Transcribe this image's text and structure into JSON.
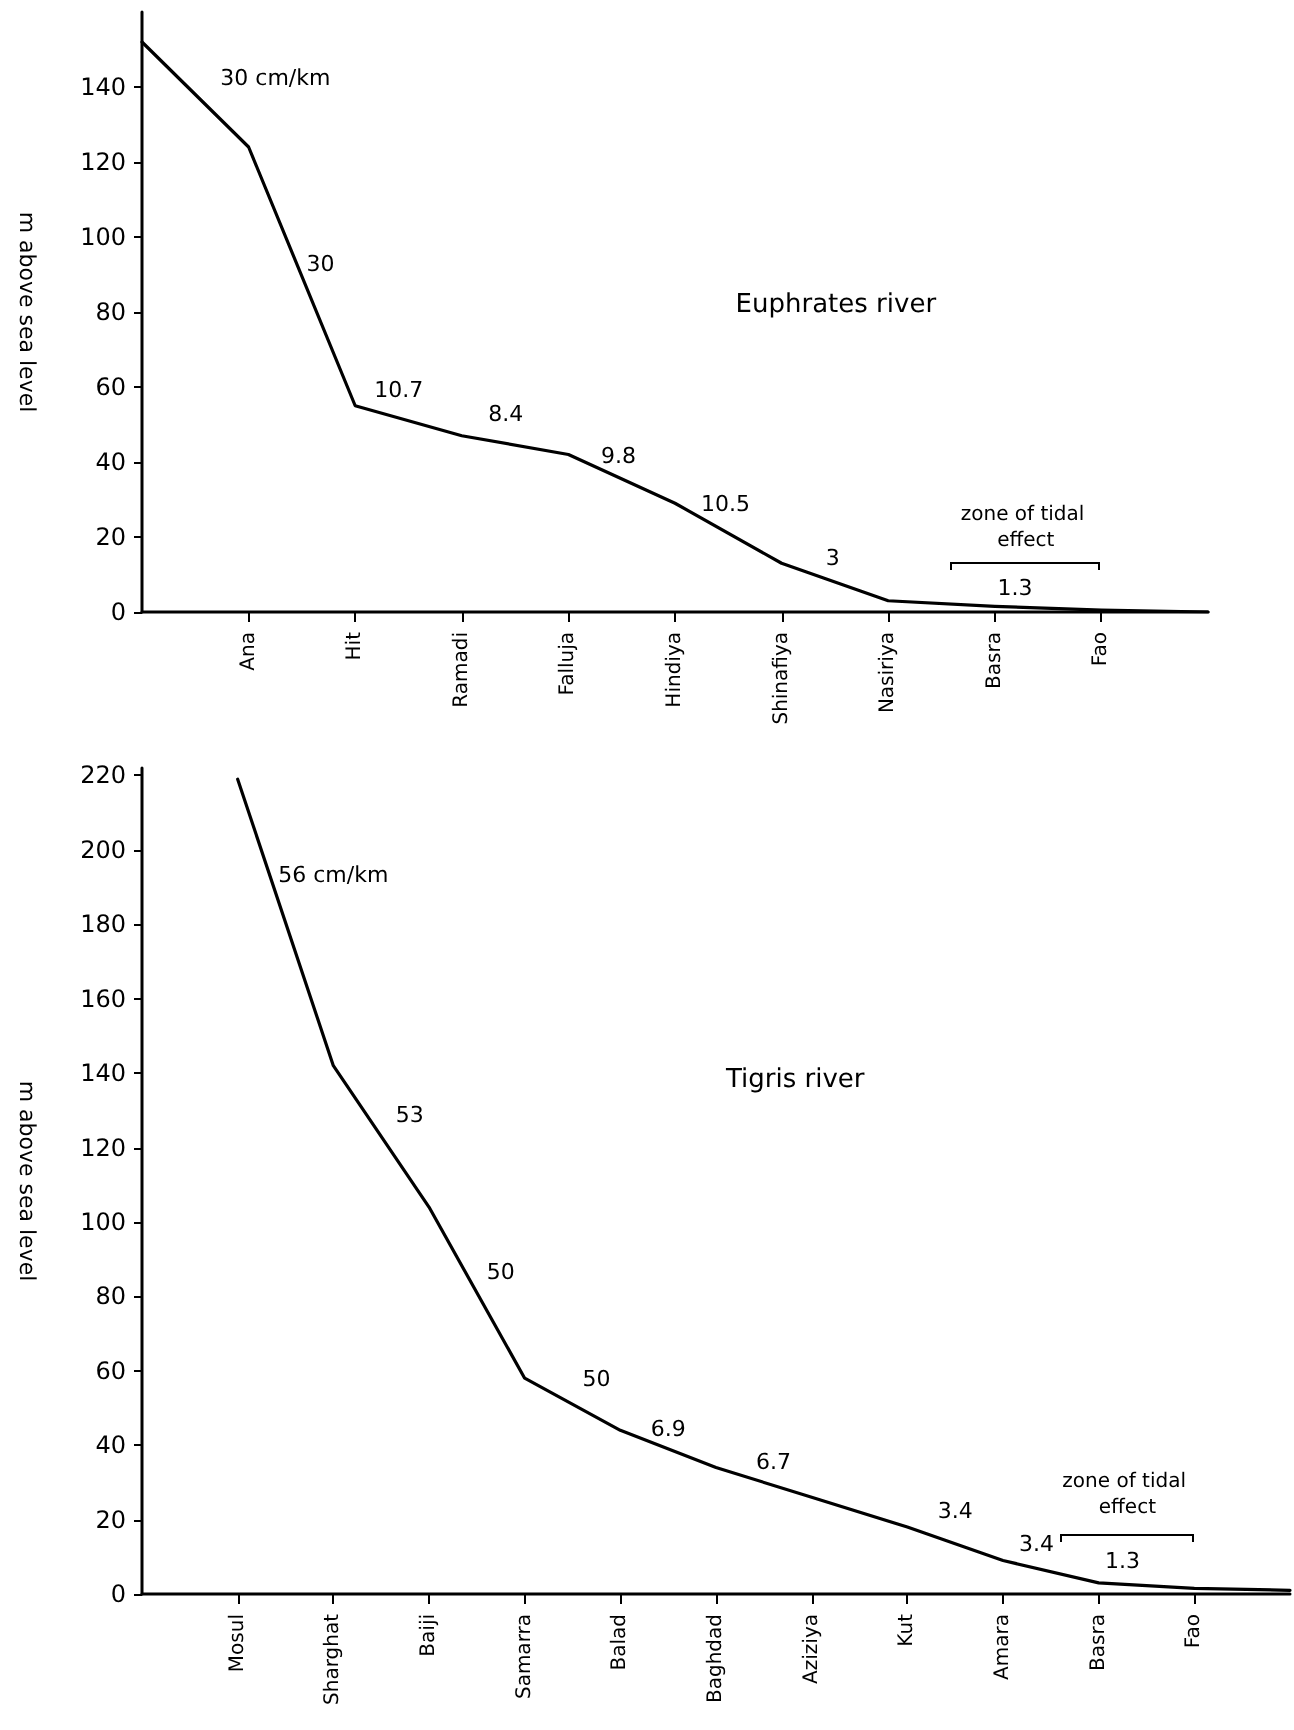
{
  "chart_data": [
    {
      "type": "line",
      "title": "Euphrates river",
      "ylabel": "m above sea level",
      "ylim": [
        0,
        160
      ],
      "categories": [
        null,
        "Ana",
        "Hit",
        "Ramadi",
        "Falluja",
        "Hindiya",
        "Shinafiya",
        "Nasiriya",
        "Basra",
        "Fao",
        null
      ],
      "yticks": [
        0,
        20,
        40,
        60,
        80,
        100,
        120,
        140
      ],
      "series": [
        {
          "color": "#000000",
          "values": [
            152,
            124,
            55,
            47,
            42,
            29,
            13,
            3,
            1.5,
            0.5,
            0
          ]
        }
      ],
      "annotations": [
        "30 cm/km",
        "30",
        "10.7",
        "8.4",
        "9.8",
        "10.5",
        "3",
        "1.3",
        "zone of tidal effect"
      ],
      "grid": false,
      "marker": "none",
      "line_style": "solid"
    },
    {
      "type": "line",
      "title": "Tigris river",
      "ylabel": "m above sea level",
      "ylim": [
        0,
        222
      ],
      "categories": [
        null,
        "Mosul",
        "Sharghat",
        "Baiji",
        "Samarra",
        "Balad",
        "Baghdad",
        "Aziziya",
        "Kut",
        "Amara",
        "Basra",
        "Fao",
        null
      ],
      "yticks": [
        0,
        20,
        40,
        60,
        80,
        100,
        120,
        140,
        160,
        180,
        200,
        220
      ],
      "series": [
        {
          "color": "#000000",
          "values": [
            null,
            219,
            142,
            104,
            58,
            44,
            34,
            26,
            18,
            9,
            3,
            1.5,
            1
          ]
        }
      ],
      "annotations": [
        "56 cm/km",
        "53",
        "50",
        "50",
        "6.9",
        "6.7",
        "3.4",
        "3.4",
        "1.3",
        "zone of tidal effect"
      ],
      "grid": false,
      "marker": "none",
      "line_style": "solid"
    }
  ]
}
